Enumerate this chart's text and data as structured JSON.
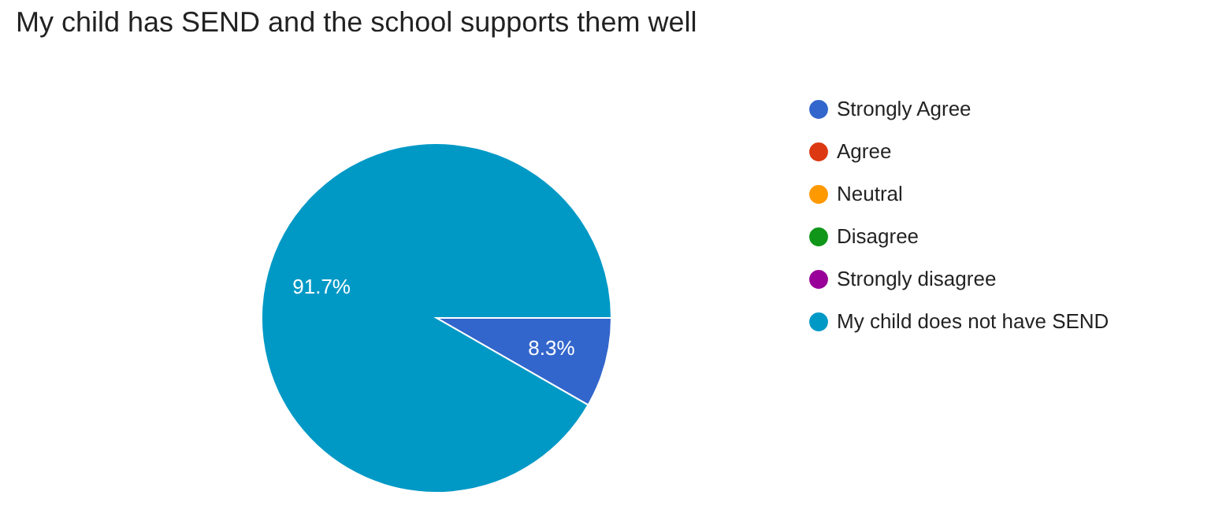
{
  "chart_data": {
    "type": "pie",
    "title": "My child has SEND and the school supports them well",
    "categories": [
      "Strongly Agree",
      "Agree",
      "Neutral",
      "Disagree",
      "Strongly disagree",
      "My child does not have SEND"
    ],
    "values": [
      8.3,
      0,
      0,
      0,
      0,
      91.7
    ],
    "colors": [
      "#3366cc",
      "#dc3912",
      "#ff9900",
      "#109618",
      "#990099",
      "#0099c6"
    ],
    "value_labels": [
      "8.3%",
      null,
      null,
      null,
      null,
      "91.7%"
    ],
    "legend": "right"
  }
}
